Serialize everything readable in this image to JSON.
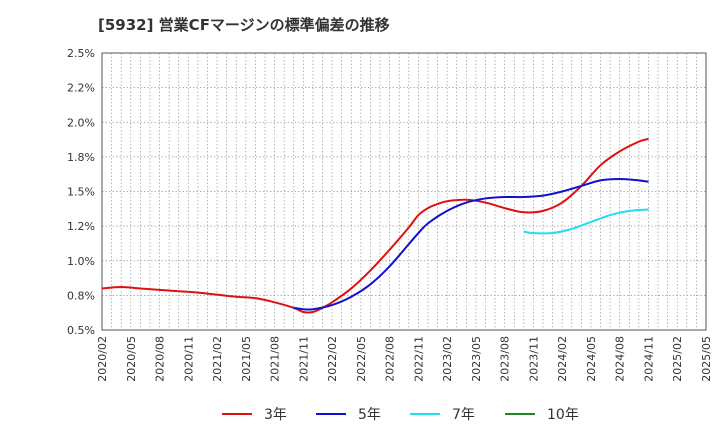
{
  "chart_data": {
    "type": "line",
    "title": "[5932]  営業CFマージンの標準偏差の推移",
    "xlabel": "",
    "ylabel": "",
    "x_ticks": [
      "2020/02",
      "2020/05",
      "2020/08",
      "2020/11",
      "2021/02",
      "2021/05",
      "2021/08",
      "2021/11",
      "2022/02",
      "2022/05",
      "2022/08",
      "2022/11",
      "2023/02",
      "2023/05",
      "2023/08",
      "2023/11",
      "2024/02",
      "2024/05",
      "2024/08",
      "2024/11",
      "2025/02",
      "2025/05"
    ],
    "y_ticks": [
      "0.5%",
      "0.8%",
      "1.0%",
      "1.2%",
      "1.5%",
      "1.8%",
      "2.0%",
      "2.2%",
      "2.5%"
    ],
    "ylim": [
      0.5,
      2.5
    ],
    "grid": true,
    "legend_position": "bottom",
    "series": [
      {
        "name": "3年",
        "color": "#dd1111",
        "points": [
          [
            "2020/02",
            0.8
          ],
          [
            "2020/04",
            0.81
          ],
          [
            "2020/06",
            0.8
          ],
          [
            "2020/08",
            0.79
          ],
          [
            "2020/10",
            0.78
          ],
          [
            "2020/12",
            0.77
          ],
          [
            "2021/02",
            0.755
          ],
          [
            "2021/04",
            0.74
          ],
          [
            "2021/06",
            0.73
          ],
          [
            "2021/08",
            0.7
          ],
          [
            "2021/10",
            0.66
          ],
          [
            "2021/11",
            0.63
          ],
          [
            "2021/12",
            0.63
          ],
          [
            "2022/01",
            0.66
          ],
          [
            "2022/02",
            0.7
          ],
          [
            "2022/04",
            0.8
          ],
          [
            "2022/06",
            0.93
          ],
          [
            "2022/08",
            1.08
          ],
          [
            "2022/10",
            1.24
          ],
          [
            "2022/11",
            1.33
          ],
          [
            "2022/12",
            1.38
          ],
          [
            "2023/01",
            1.41
          ],
          [
            "2023/02",
            1.43
          ],
          [
            "2023/04",
            1.44
          ],
          [
            "2023/06",
            1.42
          ],
          [
            "2023/08",
            1.38
          ],
          [
            "2023/10",
            1.35
          ],
          [
            "2023/12",
            1.36
          ],
          [
            "2024/02",
            1.42
          ],
          [
            "2024/04",
            1.54
          ],
          [
            "2024/06",
            1.69
          ],
          [
            "2024/08",
            1.79
          ],
          [
            "2024/10",
            1.86
          ],
          [
            "2024/11",
            1.88
          ]
        ]
      },
      {
        "name": "5年",
        "color": "#1111cc",
        "points": [
          [
            "2021/10",
            0.66
          ],
          [
            "2021/11",
            0.65
          ],
          [
            "2021/12",
            0.65
          ],
          [
            "2022/02",
            0.68
          ],
          [
            "2022/04",
            0.74
          ],
          [
            "2022/06",
            0.83
          ],
          [
            "2022/08",
            0.96
          ],
          [
            "2022/10",
            1.12
          ],
          [
            "2022/11",
            1.2
          ],
          [
            "2022/12",
            1.27
          ],
          [
            "2023/02",
            1.36
          ],
          [
            "2023/04",
            1.42
          ],
          [
            "2023/06",
            1.45
          ],
          [
            "2023/08",
            1.46
          ],
          [
            "2023/10",
            1.46
          ],
          [
            "2023/12",
            1.47
          ],
          [
            "2024/02",
            1.5
          ],
          [
            "2024/04",
            1.54
          ],
          [
            "2024/06",
            1.58
          ],
          [
            "2024/08",
            1.59
          ],
          [
            "2024/10",
            1.58
          ],
          [
            "2024/11",
            1.57
          ]
        ]
      },
      {
        "name": "7年",
        "color": "#22ddee",
        "points": [
          [
            "2023/10",
            1.21
          ],
          [
            "2023/11",
            1.2
          ],
          [
            "2024/01",
            1.2
          ],
          [
            "2024/03",
            1.23
          ],
          [
            "2024/05",
            1.28
          ],
          [
            "2024/07",
            1.33
          ],
          [
            "2024/09",
            1.36
          ],
          [
            "2024/11",
            1.37
          ]
        ]
      },
      {
        "name": "10年",
        "color": "#228822",
        "points": []
      }
    ]
  }
}
